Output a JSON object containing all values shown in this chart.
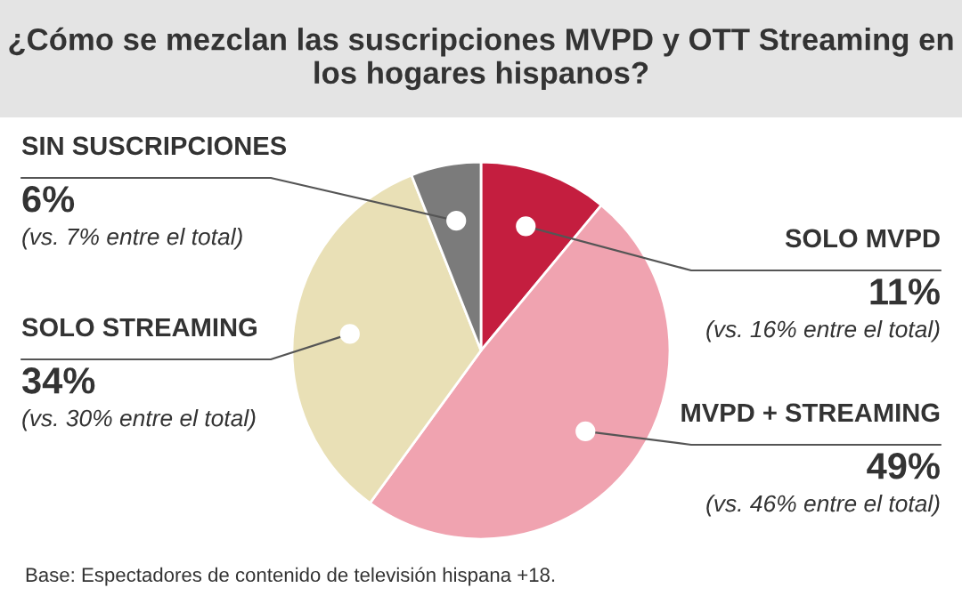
{
  "chart_data": {
    "type": "pie",
    "title": "¿Cómo se mezclan las suscripciones MVPD y OTT Streaming en los hogares hispanos?",
    "categories": [
      "SOLO MVPD",
      "MVPD + STREAMING",
      "SOLO STREAMING",
      "SIN SUSCRIPCIONES"
    ],
    "values": [
      11,
      49,
      34,
      6
    ],
    "colors": [
      "#c41e3f",
      "#f0a3b0",
      "#e9e0b6",
      "#7b7b7b"
    ],
    "value_labels": [
      "11%",
      "49%",
      "34%",
      "6%"
    ],
    "annotations": [
      "(vs. 16% entre el total)",
      "(vs. 46% entre el total)",
      "(vs. 30% entre el total)",
      "(vs. 7% entre el total)",
      "Base: Espectadores de contenido de televisión hispana +18."
    ]
  }
}
